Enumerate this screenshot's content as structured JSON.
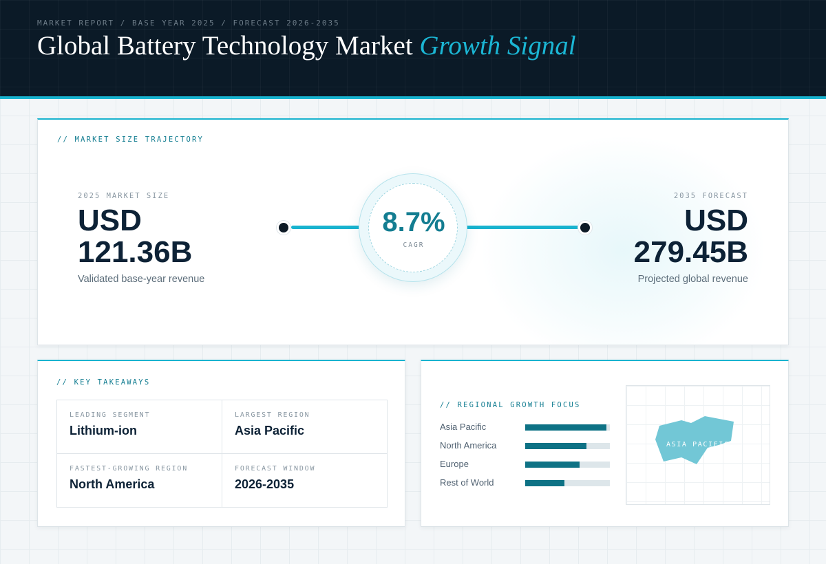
{
  "header": {
    "breadcrumb": "MARKET REPORT / BASE YEAR 2025 / FORECAST 2026-2035",
    "title_main": "Global Battery Technology Market",
    "title_accent": "Growth Signal"
  },
  "trajectory": {
    "section_label": "// MARKET SIZE TRAJECTORY",
    "start": {
      "label": "2025 MARKET SIZE",
      "currency": "USD",
      "value": "121.36B",
      "caption": "Validated base-year revenue"
    },
    "cagr": {
      "value": "8.7%",
      "label": "CAGR"
    },
    "end": {
      "label": "2035 FORECAST",
      "currency": "USD",
      "value": "279.45B",
      "caption": "Projected global revenue"
    }
  },
  "takeaways": {
    "section_label": "// KEY TAKEAWAYS",
    "items": [
      {
        "key": "LEADING SEGMENT",
        "value": "Lithium-ion"
      },
      {
        "key": "LARGEST REGION",
        "value": "Asia Pacific"
      },
      {
        "key": "FASTEST-GROWING REGION",
        "value": "North America"
      },
      {
        "key": "FORECAST WINDOW",
        "value": "2026-2035"
      }
    ]
  },
  "regional": {
    "section_label": "// REGIONAL GROWTH FOCUS",
    "bars": [
      {
        "name": "Asia Pacific",
        "level": 0.96
      },
      {
        "name": "North America",
        "level": 0.72
      },
      {
        "name": "Europe",
        "level": 0.64
      },
      {
        "name": "Rest of World",
        "level": 0.46
      }
    ],
    "map_label": "ASIA PACIFIC"
  },
  "colors": {
    "accent": "#18b3cf",
    "dark": "#0b1a27",
    "bar_fill": "#0e7285",
    "map_shape": "#72c7d6"
  }
}
